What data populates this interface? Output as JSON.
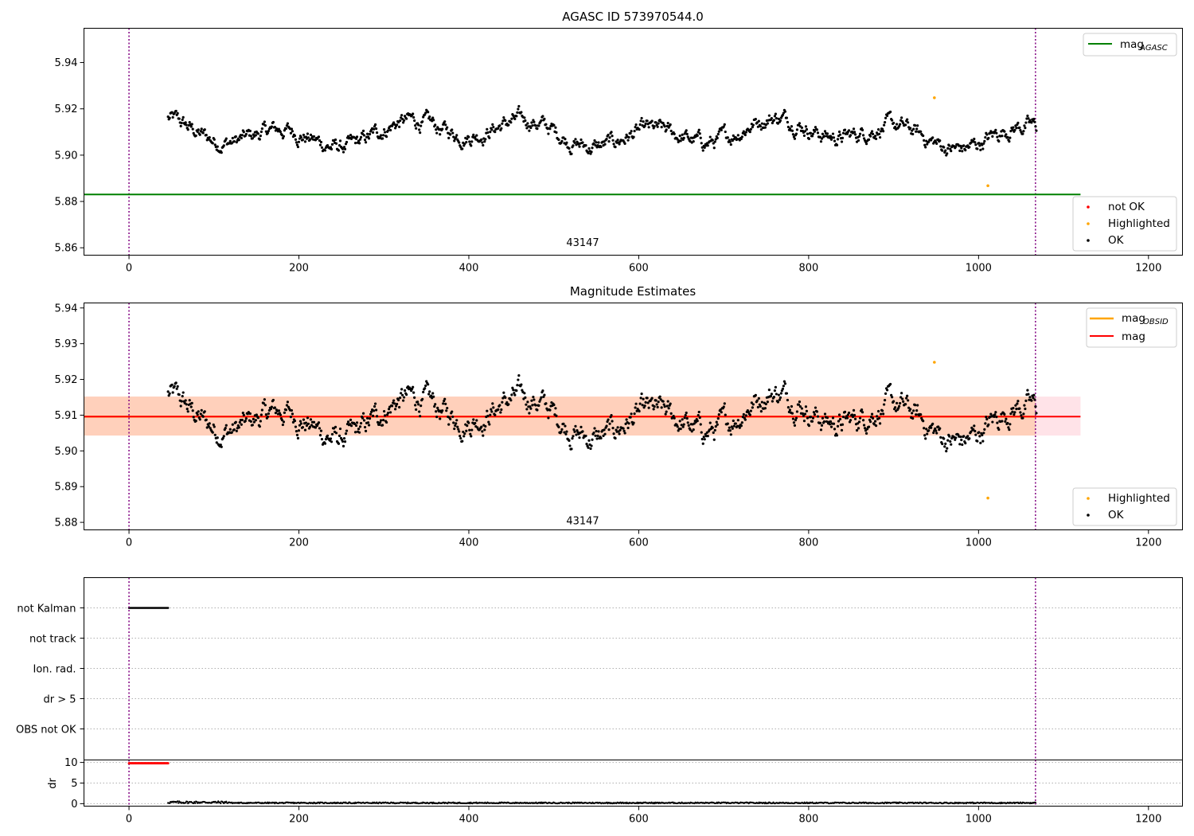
{
  "chart_data": [
    {
      "type": "scatter",
      "title": "AGASC ID 573970544.0",
      "xlim": [
        -53,
        1240
      ],
      "ylim": [
        5.8568,
        5.9548
      ],
      "xticks": [
        0,
        200,
        400,
        600,
        800,
        1000,
        1200
      ],
      "yticks": [
        5.86,
        5.88,
        5.9,
        5.92,
        5.94
      ],
      "ytick_labels": [
        "5.86",
        "5.88",
        "5.90",
        "5.92",
        "5.94"
      ],
      "vlines": [
        0,
        1067
      ],
      "hline": {
        "label": "mag",
        "label_sub": "AGASC",
        "y": 5.883,
        "x": [
          -53,
          1120
        ],
        "color": "#008000"
      },
      "segment_label": {
        "text": "43147",
        "x": 534,
        "y": 5.86
      },
      "points_ok": {
        "label": "OK",
        "color": "#000000"
      },
      "points_not_ok": {
        "label": "not OK",
        "color": "#ff0000",
        "points": []
      },
      "points_highlighted": {
        "label": "Highlighted",
        "color": "#ffa500",
        "points": [
          [
            948,
            5.9248
          ],
          [
            1011,
            5.8868
          ]
        ]
      },
      "legend_upper": "top-right",
      "legend_lower": "lower-right",
      "grid": false
    },
    {
      "type": "scatter",
      "title": "Magnitude Estimates",
      "xlim": [
        -53,
        1240
      ],
      "ylim": [
        5.8779,
        5.9414
      ],
      "xticks": [
        0,
        200,
        400,
        600,
        800,
        1000,
        1200
      ],
      "yticks": [
        5.88,
        5.89,
        5.9,
        5.91,
        5.92,
        5.93,
        5.94
      ],
      "ytick_labels": [
        "5.88",
        "5.89",
        "5.90",
        "5.91",
        "5.92",
        "5.93",
        "5.94"
      ],
      "vlines": [
        0,
        1067
      ],
      "mag_line": {
        "label": "mag",
        "y": 5.9096,
        "x": [
          -53,
          1120
        ],
        "color": "#ff0000"
      },
      "mag_band": {
        "y": [
          5.9043,
          5.9152
        ],
        "x": [
          -53,
          1120
        ],
        "color": "#ffc0cb"
      },
      "obsid_line": {
        "label": "mag",
        "label_sub": "OBSID",
        "y": 5.9096,
        "x": [
          -53,
          1067
        ],
        "color": "#ffa500"
      },
      "obsid_band": {
        "y": [
          5.9043,
          5.9152
        ],
        "x": [
          -53,
          1067
        ],
        "color": "#ffc8a8"
      },
      "segment_label": {
        "text": "43147",
        "x": 534,
        "y": 5.8795
      },
      "points_ok": {
        "label": "OK",
        "color": "#000000"
      },
      "points_highlighted": {
        "label": "Highlighted",
        "color": "#ffa500",
        "points": [
          [
            948,
            5.9248
          ],
          [
            1011,
            5.8868
          ]
        ]
      },
      "legend_upper": "top-right",
      "legend_lower": "lower-right",
      "grid": false
    },
    {
      "type": "scatter",
      "xlim": [
        -53,
        1240
      ],
      "categories": [
        "not Kalman",
        "not track",
        "Ion. rad.",
        "dr > 5",
        "OBS not OK"
      ],
      "flag_ranges": {
        "not Kalman": [
          0,
          46
        ]
      },
      "vlines": [
        0,
        1067
      ],
      "grid": "horizontal dotted",
      "dr_panel": {
        "ylabel": "dr",
        "ylim": [
          -0.6,
          10.6
        ],
        "yticks": [
          0,
          5,
          10
        ],
        "ytick_labels": [
          "0",
          "5",
          "10"
        ],
        "flagged": {
          "x": [
            0,
            46
          ],
          "y": 9.8,
          "color": "#ff0000"
        },
        "ok": {
          "x": [
            46,
            1067
          ],
          "y_range": [
            0.05,
            0.6
          ],
          "color": "#000000"
        },
        "xticks": [
          0,
          200,
          400,
          600,
          800,
          1000,
          1200
        ]
      }
    }
  ],
  "series_seed": {
    "n_points": 1090,
    "x_start": 46,
    "x_end": 1068,
    "mean": 5.9096
  },
  "legend1": {
    "mag_agasc": "mag",
    "mag_agasc_sub": "AGASC",
    "not_ok": "not OK",
    "highlighted": "Highlighted",
    "ok": "OK"
  },
  "legend2": {
    "mag_obsid": "mag",
    "mag_obsid_sub": "OBSID",
    "mag": "mag",
    "highlighted": "Highlighted",
    "ok": "OK"
  }
}
